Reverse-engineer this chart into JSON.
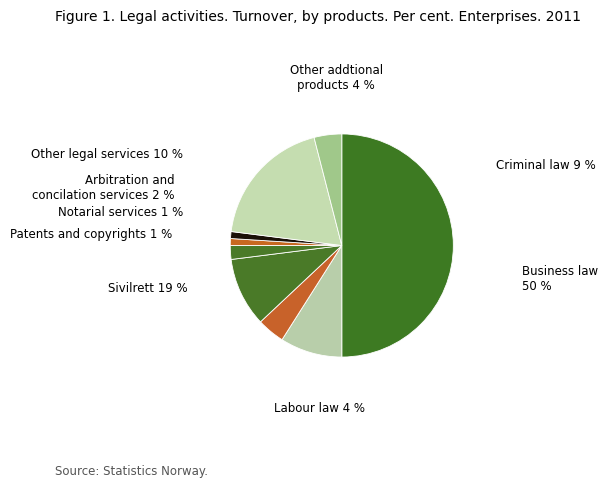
{
  "title": "Figure 1. Legal activities. Turnover, by products. Per cent. Enterprises. 2011",
  "source": "Source: Statistics Norway.",
  "slices": [
    {
      "label": "Business law\n50 %",
      "value": 50,
      "color": "#3d7a22"
    },
    {
      "label": "Criminal law 9 %",
      "value": 9,
      "color": "#b8ceaa"
    },
    {
      "label": "Other addtional\nproducts 4 %",
      "value": 4,
      "color": "#c8622a"
    },
    {
      "label": "Other legal services 10 %",
      "value": 10,
      "color": "#4a7a28"
    },
    {
      "label": "Arbitration and\nconcilation services 2 %",
      "value": 2,
      "color": "#4a7a28"
    },
    {
      "label": "Notarial services 1 %",
      "value": 1,
      "color": "#c86820"
    },
    {
      "label": "Patents and copyrights 1 %",
      "value": 1,
      "color": "#1a1008"
    },
    {
      "label": "Sivilrett 19 %",
      "value": 19,
      "color": "#c5ddb0"
    },
    {
      "label": "Labour law 4 %",
      "value": 4,
      "color": "#a0c88a"
    }
  ],
  "figsize": [
    6.1,
    4.88
  ],
  "dpi": 100,
  "fontsize_title": 10,
  "fontsize_labels": 8.5,
  "fontsize_source": 8.5
}
